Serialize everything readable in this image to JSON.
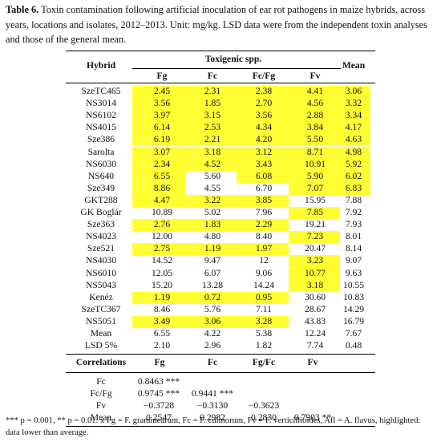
{
  "caption": {
    "label": "Table 6.",
    "text": "Toxin contamination following artificial inoculation of ear rot pathogens in maize hybrids, across years, locations and isolates, 2012–2013. Unit: mg/kg. LSD data were from the independent toxin analyses and those of the general mean."
  },
  "headers": {
    "hybrid": "Hybrid",
    "toxigenic": "Toxigenic spp.",
    "mean": "Mean",
    "fg": "Fg",
    "fc": "Fc",
    "fcfg": "Fc/Fg",
    "fv": "Fv"
  },
  "rows": [
    {
      "hybrid": "SzeTC465",
      "fg": "2.45",
      "fc": "2.31",
      "fcfg": "2.38",
      "fv": "4.41",
      "mean": "3.06",
      "hl": [
        1,
        1,
        1,
        1,
        1
      ]
    },
    {
      "hybrid": "NS3014",
      "fg": "3.56",
      "fc": "1.85",
      "fcfg": "2.70",
      "fv": "4.56",
      "mean": "3.32",
      "hl": [
        1,
        1,
        1,
        1,
        1
      ]
    },
    {
      "hybrid": "NS6102",
      "fg": "3.97",
      "fc": "3.15",
      "fcfg": "3.56",
      "fv": "2.88",
      "mean": "3.34",
      "hl": [
        1,
        1,
        1,
        1,
        1
      ]
    },
    {
      "hybrid": "NS4015",
      "fg": "6.14",
      "fc": "2.53",
      "fcfg": "4.34",
      "fv": "3.84",
      "mean": "4.17",
      "hl": [
        1,
        1,
        1,
        1,
        1
      ]
    },
    {
      "hybrid": "Sze386",
      "fg": "6.19",
      "fc": "2.21",
      "fcfg": "4.20",
      "fv": "5.50",
      "mean": "4.63",
      "hl": [
        1,
        1,
        1,
        1,
        1
      ]
    },
    {
      "hybrid": "Sarolta",
      "fg": "3.07",
      "fc": "3.18",
      "fcfg": "3.12",
      "fv": "8.71",
      "mean": "4.98",
      "hl": [
        1,
        1,
        1,
        1,
        1
      ]
    },
    {
      "hybrid": "NS6030",
      "fg": "2.34",
      "fc": "4.52",
      "fcfg": "3.43",
      "fv": "10.91",
      "mean": "5.92",
      "hl": [
        1,
        1,
        1,
        1,
        1
      ]
    },
    {
      "hybrid": "NS640",
      "fg": "6.55",
      "fc": "5.60",
      "fcfg": "6.08",
      "fv": "5.90",
      "mean": "6.02",
      "hl": [
        1,
        0,
        1,
        1,
        1
      ]
    },
    {
      "hybrid": "Sze349",
      "fg": "8.86",
      "fc": "4.55",
      "fcfg": "6.70",
      "fv": "7.07",
      "mean": "6.83",
      "hl": [
        1,
        0,
        0,
        1,
        1
      ]
    },
    {
      "hybrid": "GKT288",
      "fg": "4.47",
      "fc": "3.22",
      "fcfg": "3.85",
      "fv": "15.95",
      "mean": "7.88",
      "hl": [
        1,
        1,
        1,
        0,
        0
      ]
    },
    {
      "hybrid": "GK Boglár",
      "fg": "10.89",
      "fc": "5.02",
      "fcfg": "7.96",
      "fv": "7.85",
      "mean": "7.92",
      "hl": [
        0,
        0,
        0,
        1,
        0
      ]
    },
    {
      "hybrid": "Sze363",
      "fg": "2.76",
      "fc": "1.83",
      "fcfg": "2.29",
      "fv": "19.21",
      "mean": "7.93",
      "hl": [
        1,
        1,
        1,
        0,
        0
      ]
    },
    {
      "hybrid": "NS4023",
      "fg": "12.00",
      "fc": "4.80",
      "fcfg": "8.40",
      "fv": "7.23",
      "mean": "8.01",
      "hl": [
        0,
        0,
        0,
        1,
        0
      ]
    },
    {
      "hybrid": "Sze521",
      "fg": "2.75",
      "fc": "1.19",
      "fcfg": "1.97",
      "fv": "20.47",
      "mean": "8.14",
      "hl": [
        1,
        1,
        1,
        0,
        0
      ]
    },
    {
      "hybrid": "NS4030",
      "fg": "14.52",
      "fc": "9.47",
      "fcfg": "12",
      "fv": "3.23",
      "mean": "9.07",
      "hl": [
        0,
        0,
        0,
        1,
        0
      ]
    },
    {
      "hybrid": "NS6010",
      "fg": "12.05",
      "fc": "6.07",
      "fcfg": "9.06",
      "fv": "10.77",
      "mean": "9.63",
      "hl": [
        0,
        0,
        0,
        1,
        0
      ]
    },
    {
      "hybrid": "NS5043",
      "fg": "15.20",
      "fc": "13.28",
      "fcfg": "14.24",
      "fv": "3.18",
      "mean": "10.55",
      "hl": [
        0,
        0,
        0,
        1,
        0
      ]
    },
    {
      "hybrid": "Kenéz",
      "fg": "1.19",
      "fc": "0.72",
      "fcfg": "0.95",
      "fv": "30.60",
      "mean": "10.83",
      "hl": [
        1,
        1,
        1,
        0,
        0
      ]
    },
    {
      "hybrid": "SzeTC367",
      "fg": "8.46",
      "fc": "5.76",
      "fcfg": "7.11",
      "fv": "28.67",
      "mean": "14.29",
      "hl": [
        0,
        0,
        0,
        0,
        0
      ]
    },
    {
      "hybrid": "NS5051",
      "fg": "3.49",
      "fc": "3.06",
      "fcfg": "3.28",
      "fv": "43.83",
      "mean": "16.79",
      "hl": [
        1,
        1,
        1,
        0,
        0
      ]
    },
    {
      "hybrid": "Mean",
      "fg": "6.55",
      "fc": "4.22",
      "fcfg": "5.38",
      "fv": "12.24",
      "mean": "7.67",
      "hl": [
        0,
        0,
        0,
        0,
        0
      ]
    },
    {
      "hybrid": "LSD 5%",
      "fg": "2.10",
      "fc": "2.96",
      "fcfg": "1.82",
      "fv": "7.74",
      "mean": "0.48",
      "hl": [
        0,
        0,
        0,
        0,
        0
      ]
    }
  ],
  "correlations": {
    "header": {
      "label": "Correlations",
      "fg": "Fg",
      "fc": "Fc",
      "fgfc": "Fg/Fc",
      "fv": "Fv"
    },
    "rows": [
      {
        "label": "Fc",
        "fg": "0.8463 ***",
        "fc": "",
        "fgfc": "",
        "fv": ""
      },
      {
        "label": "Fc/Fg",
        "fg": "0.9745 ***",
        "fc": "0.9441 ***",
        "fgfc": "",
        "fv": ""
      },
      {
        "label": "Fv",
        "fg": "−0.3728",
        "fc": "−0.3130",
        "fgfc": "−0.3623",
        "fv": ""
      },
      {
        "label": "Mean",
        "fg": "0.2547",
        "fc": "0.2982",
        "fgfc": "0.2830",
        "fv": "0.7903 **"
      }
    ]
  },
  "footnote": {
    "sig": "*** p = 0.001, ** p = 0.01.",
    "x_abbrev": "x Fg = F. graminearum, Fc = F. culmorum, Fv = F. verticillioides, Afl = A. flavus, highlighted:",
    "line2": "data lower than average."
  },
  "colors": {
    "highlight": "#ffff33"
  }
}
